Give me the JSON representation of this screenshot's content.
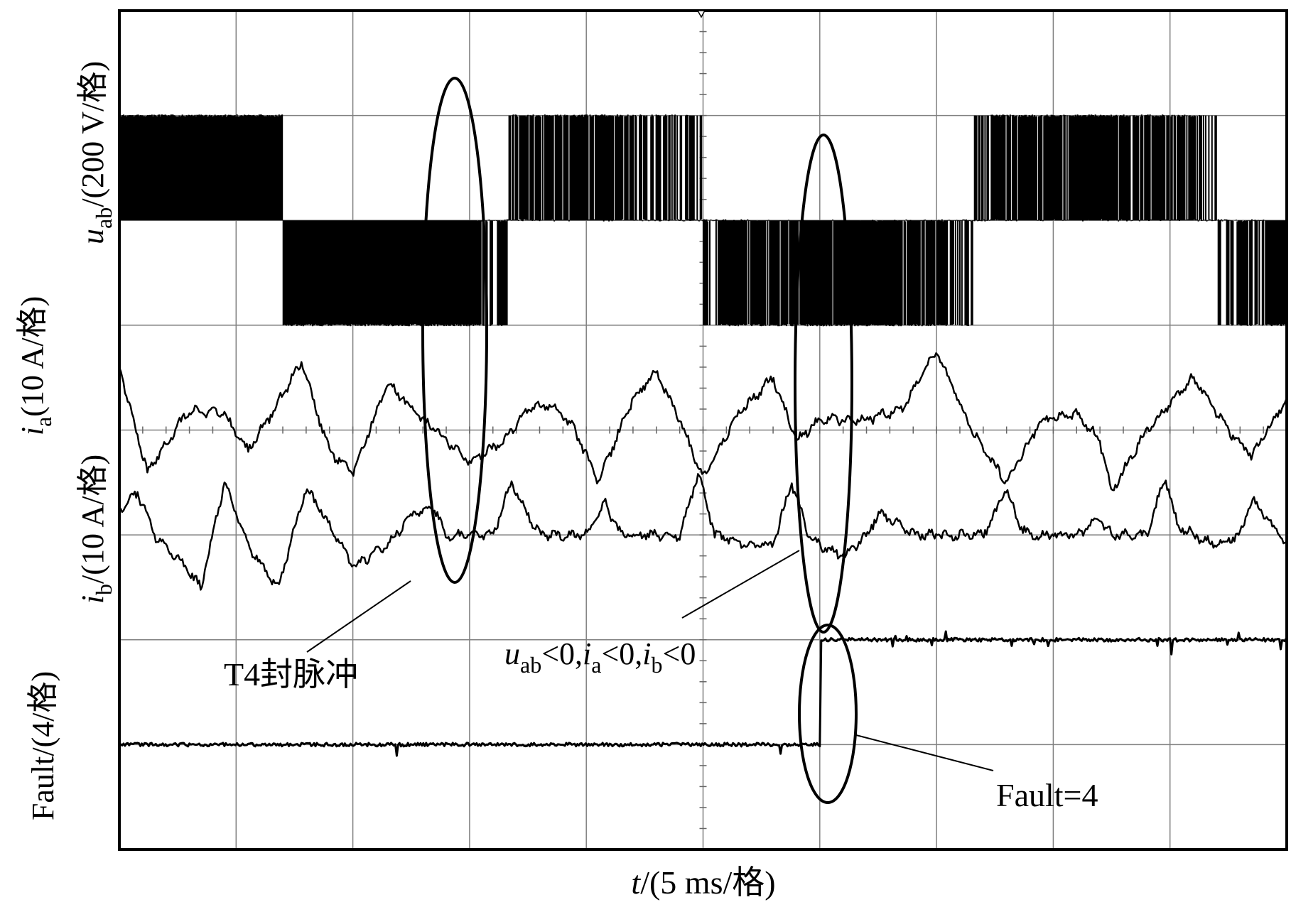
{
  "chart_data": {
    "type": "line",
    "x_label": {
      "var": "t",
      "unit": "/(5 ms/格)"
    },
    "x_divisions": 10,
    "y_divisions": 8,
    "time_per_div_ms": 5,
    "grid": true,
    "colors": {
      "trace": "#000000",
      "grid": "#808080",
      "frame": "#000000"
    },
    "channel_labels": {
      "uab": {
        "var": "u",
        "sub": "ab",
        "unit": "/(200 V/格)"
      },
      "ia": {
        "var": "i",
        "sub": "a",
        "unit": "(10 A/格)"
      },
      "ib": {
        "var": "i",
        "sub": "b",
        "unit": "/(10 A/格)"
      },
      "fault": {
        "text": "Fault/(4/格)"
      }
    },
    "series": [
      {
        "id": "uab",
        "unit": "V",
        "per_div": 200,
        "zero_div": 2,
        "pwm_levels": [
          -1,
          0,
          1
        ],
        "description_points_ms": [
          [
            0,
            1
          ],
          [
            7,
            1
          ],
          [
            7,
            -1
          ],
          [
            14.5,
            -1
          ],
          [
            16,
            -0.6
          ],
          [
            17,
            0.3
          ],
          [
            20,
            0.9
          ],
          [
            23,
            0.4
          ],
          [
            25,
            0
          ],
          [
            27,
            -0.8
          ],
          [
            30,
            -1
          ],
          [
            35,
            -0.7
          ],
          [
            38,
            0.6
          ],
          [
            41,
            0.9
          ],
          [
            45,
            0.6
          ],
          [
            47,
            0
          ],
          [
            50,
            -1
          ]
        ]
      },
      {
        "id": "ia",
        "unit": "A",
        "per_div": 10,
        "zero_div": 4,
        "points_ms": [
          [
            0,
            0.6
          ],
          [
            1.2,
            -0.4
          ],
          [
            3,
            0.2
          ],
          [
            4.5,
            0.15
          ],
          [
            5.5,
            -0.2
          ],
          [
            6.5,
            0.15
          ],
          [
            7.8,
            0.65
          ],
          [
            9,
            -0.2
          ],
          [
            10,
            -0.4
          ],
          [
            11.5,
            0.45
          ],
          [
            13,
            0.1
          ],
          [
            14,
            -0.1
          ],
          [
            15,
            -0.3
          ],
          [
            16.5,
            -0.1
          ],
          [
            17.5,
            0.2
          ],
          [
            18.5,
            0.25
          ],
          [
            19.5,
            0
          ],
          [
            20.5,
            -0.5
          ],
          [
            22,
            0.3
          ],
          [
            23,
            0.55
          ],
          [
            24,
            0.1
          ],
          [
            25,
            -0.45
          ],
          [
            26.5,
            0.15
          ],
          [
            28,
            0.5
          ],
          [
            29,
            -0.1
          ],
          [
            30,
            0.1
          ],
          [
            32,
            0.1
          ],
          [
            33.5,
            0.2
          ],
          [
            35,
            0.75
          ],
          [
            36.5,
            0
          ],
          [
            38,
            -0.5
          ],
          [
            39.5,
            0.1
          ],
          [
            41,
            0.15
          ],
          [
            42,
            -0.1
          ],
          [
            42.5,
            -0.6
          ],
          [
            44,
            0
          ],
          [
            46,
            0.5
          ],
          [
            47.5,
            0
          ],
          [
            48.5,
            -0.25
          ],
          [
            50,
            0.3
          ]
        ]
      },
      {
        "id": "ib",
        "unit": "A",
        "per_div": 10,
        "zero_div": 5,
        "points_ms": [
          [
            0,
            0.25
          ],
          [
            0.8,
            0.4
          ],
          [
            1.5,
            0
          ],
          [
            2.8,
            -0.3
          ],
          [
            3.5,
            -0.5
          ],
          [
            4.5,
            0.5
          ],
          [
            5.5,
            -0.1
          ],
          [
            6.8,
            -0.5
          ],
          [
            8,
            0.45
          ],
          [
            9,
            0.1
          ],
          [
            10,
            -0.3
          ],
          [
            11.5,
            -0.1
          ],
          [
            12.5,
            0.2
          ],
          [
            13.5,
            0.25
          ],
          [
            14,
            0
          ],
          [
            16,
            0
          ],
          [
            16.8,
            0.5
          ],
          [
            17.5,
            0.2
          ],
          [
            18,
            0
          ],
          [
            20,
            0
          ],
          [
            20.8,
            0.3
          ],
          [
            21.5,
            0
          ],
          [
            24,
            0
          ],
          [
            24.8,
            0.6
          ],
          [
            25.5,
            0
          ],
          [
            27,
            -0.1
          ],
          [
            28,
            -0.1
          ],
          [
            28.8,
            0.5
          ],
          [
            29.5,
            0
          ],
          [
            30,
            -0.1
          ],
          [
            31,
            -0.2
          ],
          [
            32,
            0
          ],
          [
            32.5,
            0.2
          ],
          [
            33,
            0.15
          ],
          [
            34,
            0
          ],
          [
            37,
            0
          ],
          [
            37.5,
            0.2
          ],
          [
            38,
            0.45
          ],
          [
            38.5,
            0.1
          ],
          [
            39,
            0
          ],
          [
            41,
            0
          ],
          [
            42,
            0.15
          ],
          [
            42.5,
            0
          ],
          [
            44,
            0
          ],
          [
            44.8,
            0.55
          ],
          [
            45.3,
            0.1
          ],
          [
            46,
            0
          ],
          [
            47,
            -0.1
          ],
          [
            48,
            0
          ],
          [
            48.5,
            0.35
          ],
          [
            49,
            0.2
          ],
          [
            50,
            -0.1
          ]
        ]
      },
      {
        "id": "fault",
        "unit": "",
        "per_div": 4,
        "zero_div": 7,
        "points_ms": [
          [
            0,
            0
          ],
          [
            30,
            0
          ],
          [
            30,
            4
          ],
          [
            50,
            4
          ]
        ]
      }
    ],
    "annotations": [
      {
        "id": "t4",
        "text": "T4封脉冲"
      },
      {
        "id": "cond",
        "parts": [
          {
            "v": "u",
            "s": "ab"
          },
          {
            "t": "<0,"
          },
          {
            "v": "i",
            "s": "a"
          },
          {
            "t": "<0,"
          },
          {
            "v": "i",
            "s": "b"
          },
          {
            "t": "<0"
          }
        ]
      },
      {
        "id": "fault_eq",
        "text": "Fault=4"
      }
    ]
  }
}
